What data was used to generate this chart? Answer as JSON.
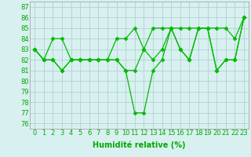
{
  "line1": {
    "x": [
      0,
      1,
      2,
      3,
      4,
      5,
      6,
      7,
      8,
      9,
      10,
      11,
      12,
      13,
      14,
      15,
      16,
      17,
      18,
      19,
      20,
      21,
      22,
      23
    ],
    "y": [
      83,
      82,
      84,
      84,
      82,
      82,
      82,
      82,
      82,
      84,
      84,
      85,
      83,
      85,
      85,
      85,
      85,
      85,
      85,
      85,
      85,
      85,
      84,
      86
    ]
  },
  "line2": {
    "x": [
      0,
      1,
      2,
      3,
      4,
      5,
      6,
      7,
      8,
      9,
      10,
      11,
      12,
      13,
      14,
      15,
      16,
      17,
      18,
      19,
      20,
      21,
      22,
      23
    ],
    "y": [
      83,
      82,
      82,
      81,
      82,
      82,
      82,
      82,
      82,
      82,
      81,
      81,
      83,
      82,
      83,
      85,
      83,
      82,
      85,
      85,
      81,
      82,
      82,
      86
    ]
  },
  "line3": {
    "x": [
      0,
      1,
      2,
      3,
      4,
      5,
      6,
      7,
      8,
      9,
      10,
      11,
      12,
      13,
      14,
      15,
      16,
      17,
      18,
      19,
      20,
      21,
      22,
      23
    ],
    "y": [
      83,
      82,
      82,
      81,
      82,
      82,
      82,
      82,
      82,
      82,
      81,
      77,
      77,
      81,
      82,
      85,
      83,
      82,
      85,
      85,
      81,
      82,
      82,
      86
    ]
  },
  "line_color": "#00bb00",
  "marker": "D",
  "marker_size": 2.5,
  "xlabel": "Humidité relative (%)",
  "ylabel_ticks": [
    76,
    77,
    78,
    79,
    80,
    81,
    82,
    83,
    84,
    85,
    86,
    87
  ],
  "xlim": [
    -0.5,
    23.5
  ],
  "ylim": [
    75.5,
    87.5
  ],
  "bg_color": "#d8f0f0",
  "grid_color": "#aacccc",
  "xlabel_color": "#00aa00",
  "xlabel_fontsize": 7,
  "tick_color": "#00aa00",
  "tick_fontsize": 6
}
